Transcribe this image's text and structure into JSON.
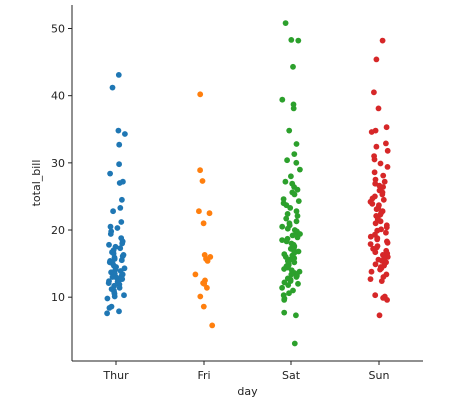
{
  "chart_data": {
    "type": "scatter",
    "xlabel": "day",
    "ylabel": "total_bill",
    "categories": [
      "Thur",
      "Fri",
      "Sat",
      "Sun"
    ],
    "yticks": [
      10,
      20,
      30,
      40,
      50
    ],
    "ylim": [
      0.5,
      53.5
    ],
    "grid": false,
    "legend": "none",
    "series": [
      {
        "category": "Thur",
        "color": "#1f77b4",
        "values": [
          43.1,
          41.2,
          34.8,
          34.3,
          32.7,
          29.8,
          28.4,
          27.2,
          27.0,
          24.5,
          23.3,
          22.8,
          21.2,
          20.5,
          20.3,
          19.8,
          19.4,
          18.8,
          18.3,
          18.0,
          17.8,
          17.5,
          17.3,
          17.0,
          16.7,
          16.5,
          16.3,
          16.1,
          15.9,
          15.7,
          15.5,
          15.4,
          15.2,
          15.0,
          14.7,
          14.5,
          14.3,
          14.1,
          13.9,
          13.7,
          13.5,
          13.4,
          13.2,
          13.0,
          12.9,
          12.7,
          12.6,
          12.4,
          12.3,
          12.1,
          11.9,
          11.7,
          11.4,
          11.2,
          11.0,
          10.7,
          10.5,
          10.3,
          10.1,
          9.8,
          8.6,
          8.4,
          7.9,
          7.6
        ]
      },
      {
        "category": "Fri",
        "color": "#ff7f0e",
        "values": [
          40.2,
          28.9,
          27.3,
          22.8,
          22.5,
          21.0,
          16.3,
          16.0,
          15.7,
          15.4,
          13.4,
          12.5,
          12.1,
          12.0,
          11.4,
          10.1,
          8.6,
          5.8
        ]
      },
      {
        "category": "Sat",
        "color": "#2ca02c",
        "values": [
          50.8,
          48.3,
          48.2,
          44.3,
          39.4,
          38.7,
          38.1,
          34.8,
          32.8,
          31.3,
          30.4,
          30.0,
          29.0,
          28.0,
          27.2,
          26.9,
          26.4,
          26.0,
          25.6,
          25.3,
          24.6,
          24.3,
          24.0,
          23.7,
          23.3,
          22.8,
          22.4,
          22.1,
          21.7,
          21.3,
          21.0,
          20.7,
          20.5,
          20.2,
          20.0,
          19.8,
          19.6,
          19.4,
          19.2,
          18.9,
          18.7,
          18.5,
          18.3,
          18.0,
          17.8,
          17.6,
          17.4,
          17.2,
          17.0,
          16.8,
          16.6,
          16.4,
          16.2,
          16.0,
          15.8,
          15.6,
          15.4,
          15.2,
          15.0,
          14.8,
          14.6,
          14.4,
          14.2,
          14.0,
          13.8,
          13.6,
          13.4,
          13.2,
          13.0,
          12.8,
          12.6,
          12.4,
          12.2,
          12.0,
          11.8,
          11.4,
          11.0,
          10.6,
          10.3,
          9.8,
          9.6,
          7.7,
          7.3,
          3.1
        ]
      },
      {
        "category": "Sun",
        "color": "#d62728",
        "values": [
          48.2,
          45.4,
          40.5,
          38.1,
          35.3,
          34.8,
          34.6,
          32.9,
          32.4,
          31.8,
          31.0,
          30.5,
          29.9,
          29.4,
          28.6,
          28.1,
          27.5,
          27.2,
          26.9,
          26.6,
          26.4,
          25.9,
          25.6,
          25.3,
          25.0,
          24.7,
          24.5,
          24.2,
          23.9,
          23.7,
          23.3,
          23.1,
          22.8,
          22.6,
          22.3,
          22.1,
          21.8,
          21.6,
          21.3,
          21.0,
          20.7,
          20.4,
          20.1,
          19.9,
          19.6,
          19.3,
          19.0,
          18.8,
          18.6,
          18.3,
          18.1,
          17.9,
          17.6,
          17.4,
          17.2,
          16.9,
          16.7,
          16.5,
          16.3,
          16.0,
          15.8,
          15.6,
          15.4,
          15.2,
          14.9,
          14.7,
          14.5,
          14.3,
          14.1,
          13.8,
          13.4,
          13.0,
          12.7,
          12.4,
          10.3,
          10.1,
          9.9,
          9.6,
          7.3
        ]
      }
    ]
  }
}
